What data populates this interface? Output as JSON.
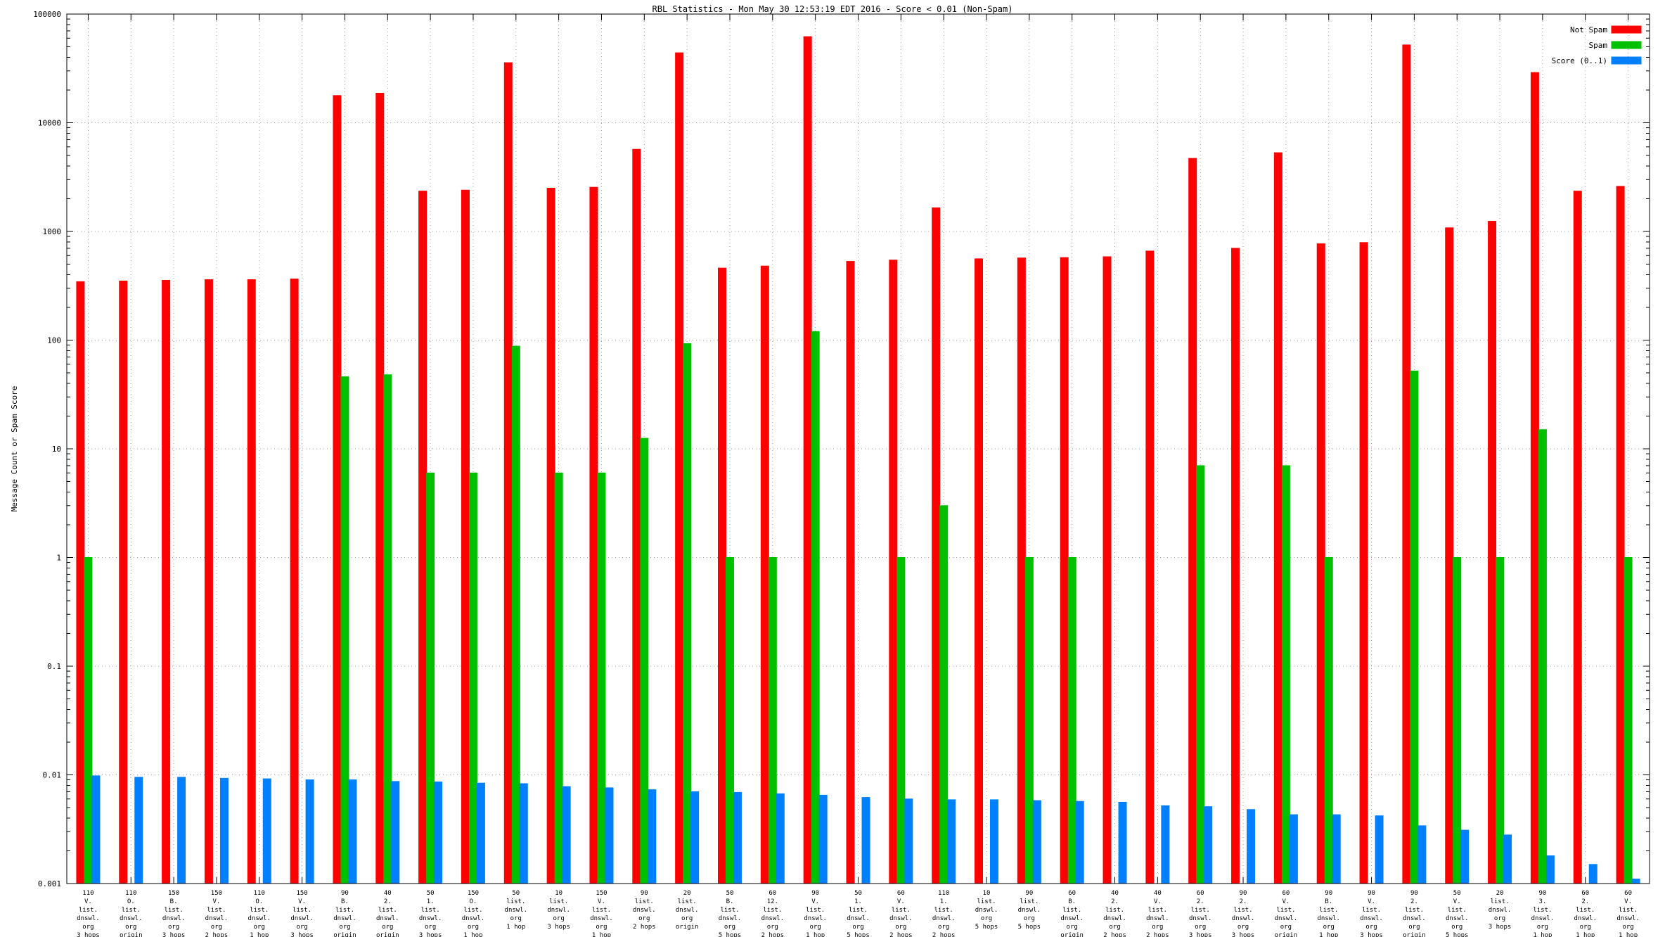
{
  "title": "RBL Statistics - Mon May 30 12:53:19 EDT 2016 - Score < 0.01 (Non-Spam)",
  "chart_data": {
    "type": "bar",
    "scale": "log",
    "title": "RBL Statistics - Mon May 30 12:53:19 EDT 2016 - Score < 0.01 (Non-Spam)",
    "xlabel": "",
    "ylabel": "Message Count or Spam Score",
    "ylim": [
      0.001,
      100000
    ],
    "yticks": [
      "100000",
      "10000",
      "1000",
      "100",
      "10",
      "1",
      "0.1",
      "0.01",
      "0.001"
    ],
    "grid": true,
    "legend_position": "top-right",
    "legend": [
      {
        "name": "Not Spam",
        "color": "#ff0000"
      },
      {
        "name": "Spam",
        "color": "#00c000"
      },
      {
        "name": "Score (0..1)",
        "color": "#0080ff"
      }
    ],
    "categories": [
      [
        "110",
        "V.",
        "list.",
        "dnswl.",
        "org",
        "3 hops"
      ],
      [
        "110",
        "O.",
        "list.",
        "dnswl.",
        "org",
        "origin"
      ],
      [
        "150",
        "B.",
        "list.",
        "dnswl.",
        "org",
        "3 hops"
      ],
      [
        "150",
        "V.",
        "list.",
        "dnswl.",
        "org",
        "2 hops"
      ],
      [
        "110",
        "O.",
        "list.",
        "dnswl.",
        "org",
        "1 hop"
      ],
      [
        "150",
        "V.",
        "list.",
        "dnswl.",
        "org",
        "3 hops"
      ],
      [
        "90",
        "B.",
        "list.",
        "dnswl.",
        "org",
        "origin"
      ],
      [
        "40",
        "2.",
        "list.",
        "dnswl.",
        "org",
        "origin"
      ],
      [
        "50",
        "1.",
        "list.",
        "dnswl.",
        "org",
        "3 hops"
      ],
      [
        "150",
        "O.",
        "list.",
        "dnswl.",
        "org",
        "1 hop"
      ],
      [
        "50",
        "list.",
        "dnswl.",
        "org",
        "1 hop"
      ],
      [
        "10",
        "list.",
        "dnswl.",
        "org",
        "3 hops"
      ],
      [
        "150",
        "V.",
        "list.",
        "dnswl.",
        "org",
        "1 hop"
      ],
      [
        "90",
        "list.",
        "dnswl.",
        "org",
        "2 hops"
      ],
      [
        "20",
        "list.",
        "dnswl.",
        "org",
        "origin"
      ],
      [
        "50",
        "B.",
        "list.",
        "dnswl.",
        "org",
        "5 hops"
      ],
      [
        "60",
        "12.",
        "list.",
        "dnswl.",
        "org",
        "2 hops"
      ],
      [
        "90",
        "V.",
        "list.",
        "dnswl.",
        "org",
        "1 hop"
      ],
      [
        "50",
        "1.",
        "list.",
        "dnswl.",
        "org",
        "5 hops"
      ],
      [
        "60",
        "V.",
        "list.",
        "dnswl.",
        "org",
        "2 hops"
      ],
      [
        "110",
        "1.",
        "list.",
        "dnswl.",
        "org",
        "2 hops"
      ],
      [
        "10",
        "list.",
        "dnswl.",
        "org",
        "5 hops"
      ],
      [
        "90",
        "list.",
        "dnswl.",
        "org",
        "5 hops"
      ],
      [
        "60",
        "B.",
        "list.",
        "dnswl.",
        "org",
        "origin"
      ],
      [
        "40",
        "2.",
        "list.",
        "dnswl.",
        "org",
        "2 hops"
      ],
      [
        "40",
        "V.",
        "list.",
        "dnswl.",
        "org",
        "2 hops"
      ],
      [
        "60",
        "2.",
        "list.",
        "dnswl.",
        "org",
        "3 hops"
      ],
      [
        "90",
        "2.",
        "list.",
        "dnswl.",
        "org",
        "3 hops"
      ],
      [
        "60",
        "V.",
        "list.",
        "dnswl.",
        "org",
        "origin"
      ],
      [
        "90",
        "B.",
        "list.",
        "dnswl.",
        "org",
        "1 hop"
      ],
      [
        "90",
        "V.",
        "list.",
        "dnswl.",
        "org",
        "3 hops"
      ],
      [
        "90",
        "2.",
        "list.",
        "dnswl.",
        "org",
        "origin"
      ],
      [
        "50",
        "V.",
        "list.",
        "dnswl.",
        "org",
        "5 hops"
      ],
      [
        "20",
        "list.",
        "dnswl.",
        "org",
        "3 hops"
      ],
      [
        "90",
        "3.",
        "list.",
        "dnswl.",
        "org",
        "1 hop"
      ],
      [
        "60",
        "2.",
        "list.",
        "dnswl.",
        "org",
        "1 hop"
      ],
      [
        "60",
        "V.",
        "list.",
        "dnswl.",
        "org",
        "1 hop"
      ]
    ],
    "series": [
      {
        "name": "Not Spam",
        "key": "not-spam",
        "color": "#ff0000",
        "values": [
          345,
          350,
          355,
          360,
          360,
          365,
          17800,
          18700,
          2350,
          2400,
          35700,
          2500,
          2550,
          5700,
          44000,
          460,
          480,
          62000,
          530,
          545,
          1650,
          560,
          570,
          575,
          585,
          660,
          4700,
          700,
          5300,
          770,
          790,
          52000,
          1080,
          1240,
          29000,
          2350,
          2600
        ]
      },
      {
        "name": "Spam",
        "key": "spam",
        "color": "#00c000",
        "values": [
          1,
          null,
          null,
          null,
          null,
          null,
          46,
          48,
          6,
          6,
          88,
          6,
          6,
          12.5,
          93,
          1,
          1,
          120,
          null,
          1,
          3,
          null,
          1,
          1,
          null,
          null,
          7,
          null,
          7,
          1,
          null,
          52,
          1,
          1,
          15,
          null,
          1
        ]
      },
      {
        "name": "Score (0..1)",
        "key": "score",
        "color": "#0080ff",
        "values": [
          0.0098,
          0.0095,
          0.0095,
          0.0093,
          0.0092,
          0.009,
          0.009,
          0.0087,
          0.0086,
          0.0084,
          0.0083,
          0.0078,
          0.0076,
          0.0073,
          0.007,
          0.0069,
          0.0067,
          0.0065,
          0.0062,
          0.006,
          0.0059,
          0.0059,
          0.0058,
          0.0057,
          0.0056,
          0.0052,
          0.0051,
          0.0048,
          0.0043,
          0.0043,
          0.0042,
          0.0034,
          0.0031,
          0.0028,
          0.0018,
          0.0015,
          0.0011
        ]
      }
    ]
  }
}
